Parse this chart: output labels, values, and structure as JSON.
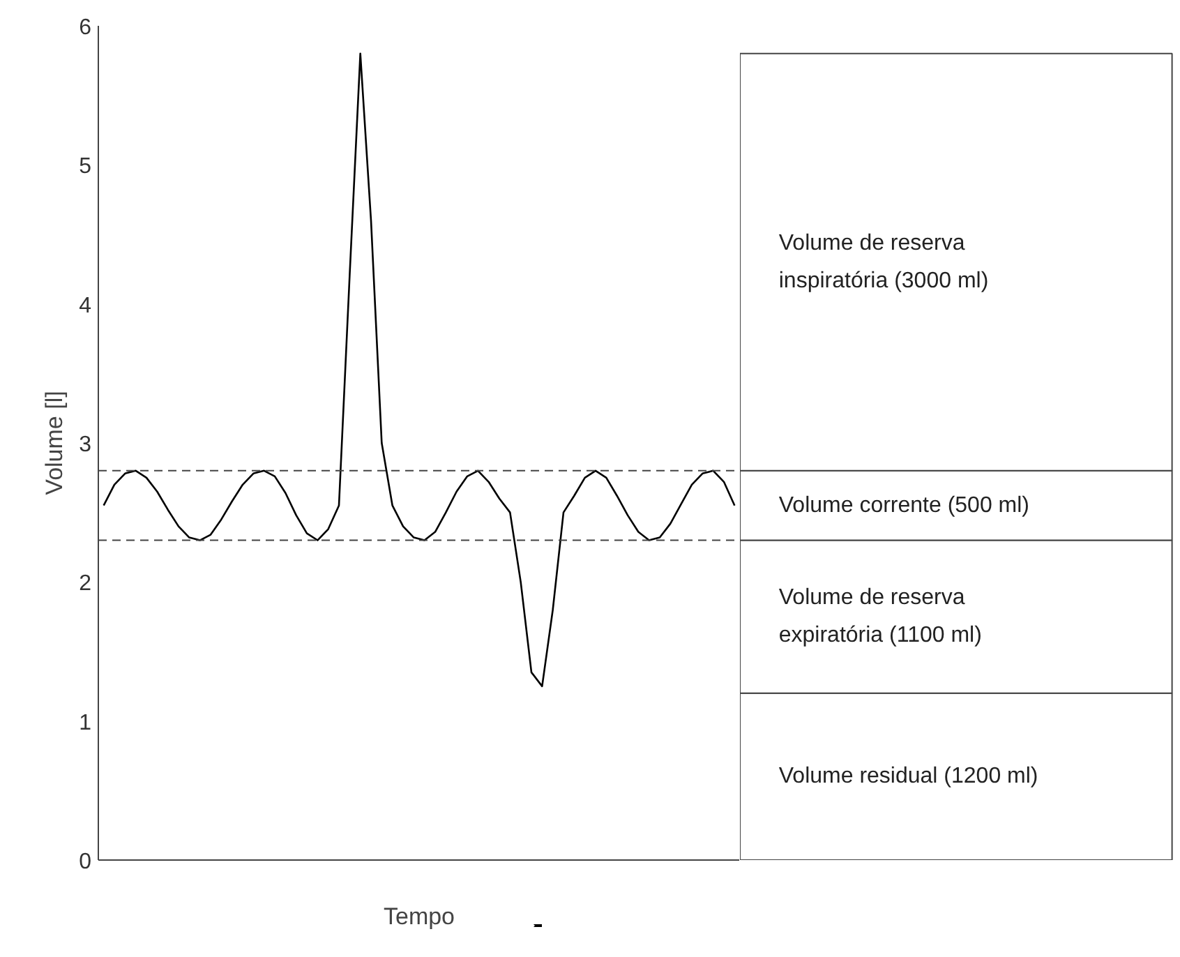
{
  "chart_data": [
    {
      "type": "line",
      "xlabel": "Tempo",
      "ylabel": "Volume [l]",
      "categories": [
        null,
        null,
        null,
        null,
        null,
        null,
        null,
        null,
        null,
        null,
        null,
        null,
        null,
        null,
        null,
        null,
        null,
        null,
        null,
        null,
        null,
        null,
        null,
        null,
        null,
        null,
        null,
        null,
        null,
        null,
        null,
        null,
        null,
        null,
        null,
        null,
        null,
        null,
        null,
        null,
        null,
        null,
        null,
        null,
        null,
        null,
        null,
        null,
        null,
        null,
        null,
        null,
        null,
        null,
        null,
        null,
        null,
        null,
        null,
        null
      ],
      "series": [
        {
          "color": "#000000",
          "values": [
            2.55,
            2.7,
            2.78,
            2.8,
            2.75,
            2.65,
            2.52,
            2.4,
            2.32,
            2.3,
            2.34,
            2.45,
            2.58,
            2.7,
            2.78,
            2.8,
            2.76,
            2.64,
            2.48,
            2.35,
            2.3,
            2.38,
            2.55,
            4.2,
            5.8,
            4.6,
            3.0,
            2.55,
            2.4,
            2.32,
            2.3,
            2.36,
            2.5,
            2.65,
            2.76,
            2.8,
            2.72,
            2.6,
            2.5,
            2.0,
            1.35,
            1.25,
            1.8,
            2.5,
            2.62,
            2.75,
            2.8,
            2.75,
            2.62,
            2.48,
            2.36,
            2.3,
            2.32,
            2.42,
            2.56,
            2.7,
            2.78,
            2.8,
            2.72,
            2.55
          ]
        }
      ],
      "ylim": [
        0,
        6
      ],
      "yticks": [
        0,
        1,
        2,
        3,
        4,
        5,
        6
      ],
      "tick_labels": "y",
      "line_style": "solid",
      "ref_lines": [
        {
          "axis": "y",
          "value": 2.8,
          "line_style": "dashed"
        },
        {
          "axis": "y",
          "value": 2.3,
          "line_style": "dashed"
        }
      ]
    },
    {
      "type": "bar",
      "stacked": true,
      "categories": [
        null
      ],
      "ylim": [
        0,
        6
      ],
      "tick_labels": false,
      "series": [
        {
          "name": "Volume residual (1200 ml)",
          "color": "#ffffff",
          "values": [
            1.2
          ]
        },
        {
          "name": "Volume de reserva expiratória (1100 ml)",
          "color": "#ffffff",
          "values": [
            1.1
          ]
        },
        {
          "name": "Volume corrente (500 ml)",
          "color": "#ffffff",
          "values": [
            0.5
          ]
        },
        {
          "name": "Volume de reserva inspiratória (3000 ml)",
          "color": "#ffffff",
          "values": [
            3.0
          ]
        }
      ]
    }
  ]
}
